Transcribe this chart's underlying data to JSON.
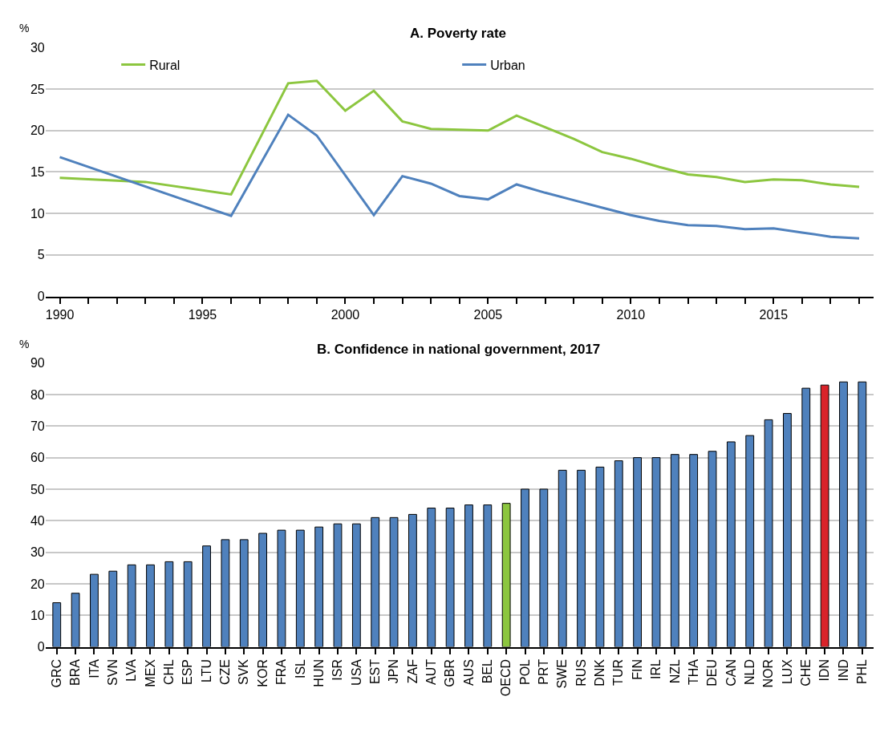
{
  "chart_data": [
    {
      "type": "line",
      "title": "A. Poverty rate",
      "ylabel": "%",
      "legend": "top",
      "grid": "y",
      "line_style": "solid",
      "marker": "none",
      "xlim": [
        1989.5,
        2018.5
      ],
      "xticks": [
        1990,
        {
          "value": 1991,
          "label": null
        },
        {
          "value": 1992,
          "label": null
        },
        {
          "value": 1993,
          "label": null
        },
        {
          "value": 1994,
          "label": null
        },
        1995,
        {
          "value": 1996,
          "label": null
        },
        {
          "value": 1997,
          "label": null
        },
        {
          "value": 1998,
          "label": null
        },
        {
          "value": 1999,
          "label": null
        },
        2000,
        {
          "value": 2001,
          "label": null
        },
        {
          "value": 2002,
          "label": null
        },
        {
          "value": 2003,
          "label": null
        },
        {
          "value": 2004,
          "label": null
        },
        2005,
        {
          "value": 2006,
          "label": null
        },
        {
          "value": 2007,
          "label": null
        },
        {
          "value": 2008,
          "label": null
        },
        {
          "value": 2009,
          "label": null
        },
        2010,
        {
          "value": 2011,
          "label": null
        },
        {
          "value": 2012,
          "label": null
        },
        {
          "value": 2013,
          "label": null
        },
        {
          "value": 2014,
          "label": null
        },
        2015,
        {
          "value": 2016,
          "label": null
        },
        {
          "value": 2017,
          "label": null
        },
        {
          "value": 2018,
          "label": null
        }
      ],
      "ylim": [
        0,
        30
      ],
      "yticks": [
        0,
        5,
        10,
        15,
        20,
        25,
        30
      ],
      "series": [
        {
          "name": "Rural",
          "color": "#8cc63f",
          "x": [
            1990,
            1993,
            1996,
            1998,
            1999,
            2000,
            2001,
            2002,
            2003,
            2004,
            2005,
            2006,
            2007,
            2008,
            2009,
            2010,
            2011,
            2012,
            2013,
            2014,
            2015,
            2016,
            2017,
            2018
          ],
          "values": [
            14.3,
            13.8,
            12.3,
            25.7,
            26.0,
            22.4,
            24.8,
            21.1,
            20.2,
            20.1,
            20.0,
            21.8,
            20.4,
            19.0,
            17.4,
            16.6,
            15.6,
            14.7,
            14.4,
            13.8,
            14.1,
            14.0,
            13.5,
            13.2
          ]
        },
        {
          "name": "Urban",
          "color": "#4f81bd",
          "x": [
            1990,
            1996,
            1998,
            1999,
            2001,
            2002,
            2003,
            2004,
            2005,
            2006,
            2007,
            2008,
            2009,
            2010,
            2011,
            2012,
            2013,
            2014,
            2015,
            2016,
            2017,
            2018
          ],
          "values": [
            16.8,
            9.7,
            21.9,
            19.4,
            9.8,
            14.5,
            13.6,
            12.1,
            11.7,
            13.5,
            12.5,
            11.6,
            10.7,
            9.8,
            9.1,
            8.6,
            8.5,
            8.1,
            8.2,
            7.7,
            7.2,
            7.0
          ]
        }
      ]
    },
    {
      "type": "bar",
      "title": "B. Confidence in national government, 2017",
      "ylabel": "%",
      "legend": false,
      "grid": "y",
      "ylim": [
        0,
        90
      ],
      "yticks": [
        0,
        10,
        20,
        30,
        40,
        50,
        60,
        70,
        80,
        90
      ],
      "categories": [
        "GRC",
        "BRA",
        "ITA",
        "SVN",
        "LVA",
        "MEX",
        "CHL",
        "ESP",
        "LTU",
        "CZE",
        "SVK",
        "KOR",
        "FRA",
        "ISL",
        "HUN",
        "ISR",
        "USA",
        "EST",
        "JPN",
        "ZAF",
        "AUT",
        "GBR",
        "AUS",
        "BEL",
        "OECD",
        "POL",
        "PRT",
        "SWE",
        "RUS",
        "DNK",
        "TUR",
        "FIN",
        "IRL",
        "NZL",
        "THA",
        "DEU",
        "CAN",
        "NLD",
        "NOR",
        "LUX",
        "CHE",
        "IDN",
        "IND",
        "PHL"
      ],
      "values": [
        14,
        17,
        23,
        24,
        26,
        26,
        27,
        27,
        32,
        34,
        34,
        36,
        37,
        37,
        38,
        39,
        39,
        41,
        41,
        42,
        44,
        44,
        45,
        45,
        45.5,
        50,
        50,
        56,
        56,
        57,
        59,
        60,
        60,
        61,
        61,
        62,
        65,
        67,
        72,
        74,
        82,
        83,
        84,
        84
      ],
      "colors": [
        "#4f81bd",
        "#4f81bd",
        "#4f81bd",
        "#4f81bd",
        "#4f81bd",
        "#4f81bd",
        "#4f81bd",
        "#4f81bd",
        "#4f81bd",
        "#4f81bd",
        "#4f81bd",
        "#4f81bd",
        "#4f81bd",
        "#4f81bd",
        "#4f81bd",
        "#4f81bd",
        "#4f81bd",
        "#4f81bd",
        "#4f81bd",
        "#4f81bd",
        "#4f81bd",
        "#4f81bd",
        "#4f81bd",
        "#4f81bd",
        "#8cc63f",
        "#4f81bd",
        "#4f81bd",
        "#4f81bd",
        "#4f81bd",
        "#4f81bd",
        "#4f81bd",
        "#4f81bd",
        "#4f81bd",
        "#4f81bd",
        "#4f81bd",
        "#4f81bd",
        "#4f81bd",
        "#4f81bd",
        "#4f81bd",
        "#4f81bd",
        "#4f81bd",
        "#d9232a",
        "#4f81bd",
        "#4f81bd"
      ]
    }
  ]
}
